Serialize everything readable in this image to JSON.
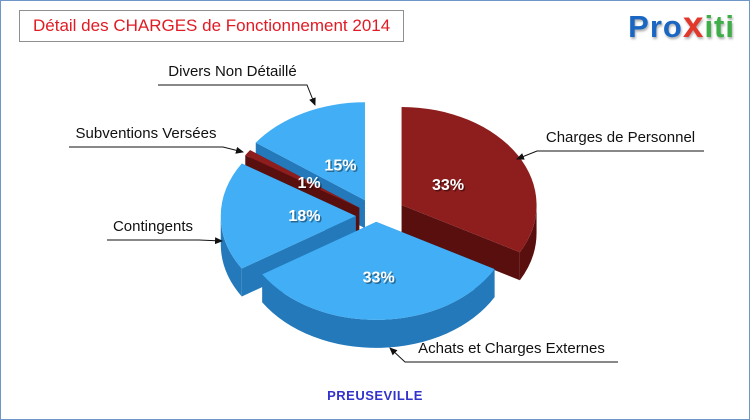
{
  "title": {
    "text": "Détail des CHARGES de Fonctionnement 2014",
    "color": "#e01b24",
    "border_color": "#8f8f8f"
  },
  "logo": {
    "name": "Proxiti",
    "segments": [
      {
        "text": "Pro",
        "color": "#1a66c2"
      },
      {
        "text": "x",
        "color": "#e2382b"
      },
      {
        "text": "iti",
        "color": "#3fae49"
      }
    ]
  },
  "footer": {
    "text": "PREUSEVILLE",
    "color": "#3333cc"
  },
  "chart_data": {
    "type": "pie",
    "title": "Détail des CHARGES de Fonctionnement 2014",
    "unit": "%",
    "style": "3d-exploded",
    "start_angle_deg": 0,
    "clockwise": true,
    "legend_position": "callouts",
    "slices": [
      {
        "label": "Charges de Personnel",
        "value": 33,
        "color": "#8e1d1d",
        "side_color": "#5a0f0f",
        "explode": 0.22
      },
      {
        "label": "Achats et Charges Externes",
        "value": 33,
        "color": "#41aef5",
        "side_color": "#2379ba",
        "explode": 0.06
      },
      {
        "label": "Contingents",
        "value": 18,
        "color": "#41aef5",
        "side_color": "#2379ba",
        "explode": 0.15
      },
      {
        "label": "Subventions Versées",
        "value": 1,
        "color": "#8e1d1d",
        "side_color": "#5a0f0f",
        "explode": 0.15
      },
      {
        "label": "Divers Non Détaillé",
        "value": 15,
        "color": "#41aef5",
        "side_color": "#2379ba",
        "explode": 0.18
      }
    ],
    "percent_labels": [
      "33%",
      "33%",
      "18%",
      "1%",
      "15%"
    ],
    "label_r": [
      0.4,
      0.57,
      0.38,
      0.45,
      0.4
    ]
  }
}
